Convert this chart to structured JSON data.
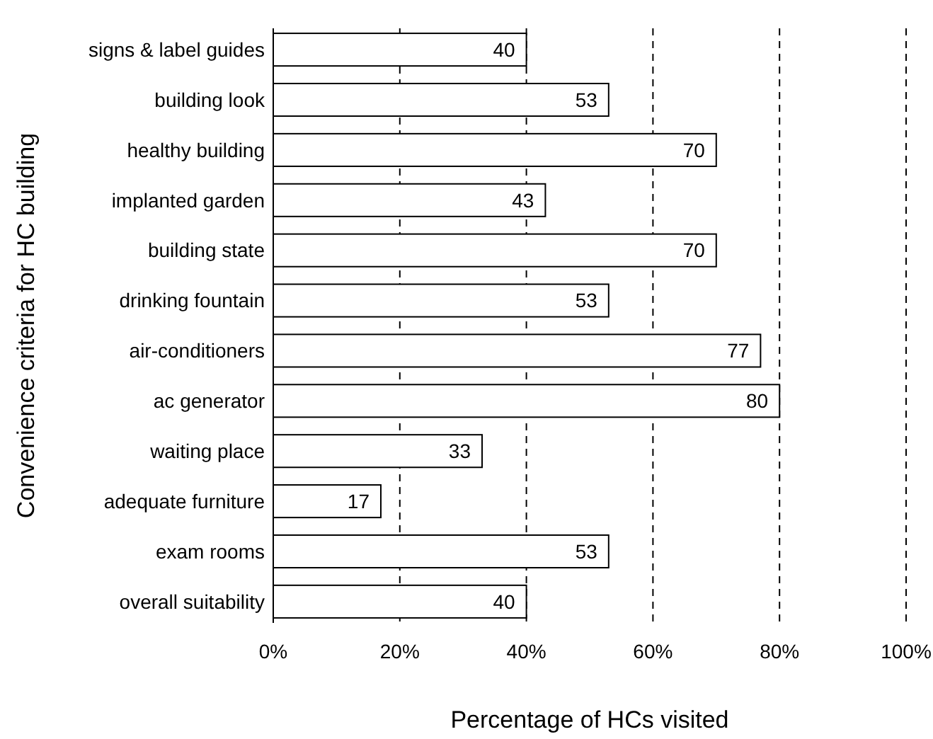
{
  "chart_data": {
    "type": "bar",
    "orientation": "horizontal",
    "xlabel": "Percentage of HCs visited",
    "ylabel": "Convenience criteria for HC building",
    "categories": [
      "signs & label guides",
      "building look",
      "healthy building",
      "implanted garden",
      "building state",
      "drinking fountain",
      "air-conditioners",
      "ac generator",
      "waiting place",
      "adequate furniture",
      "exam rooms",
      "overall suitability"
    ],
    "values": [
      40,
      53,
      70,
      43,
      70,
      53,
      77,
      80,
      33,
      17,
      53,
      40
    ],
    "color": "#ffffff",
    "data_labels": true,
    "xlim": [
      0,
      100
    ],
    "xticks": [
      {
        "value": 0,
        "label": "0%"
      },
      {
        "value": 20,
        "label": "20%"
      },
      {
        "value": 40,
        "label": "40%"
      },
      {
        "value": 60,
        "label": "60%"
      },
      {
        "value": 80,
        "label": "80%"
      },
      {
        "value": 100,
        "label": "100%"
      }
    ],
    "grid": "x"
  }
}
